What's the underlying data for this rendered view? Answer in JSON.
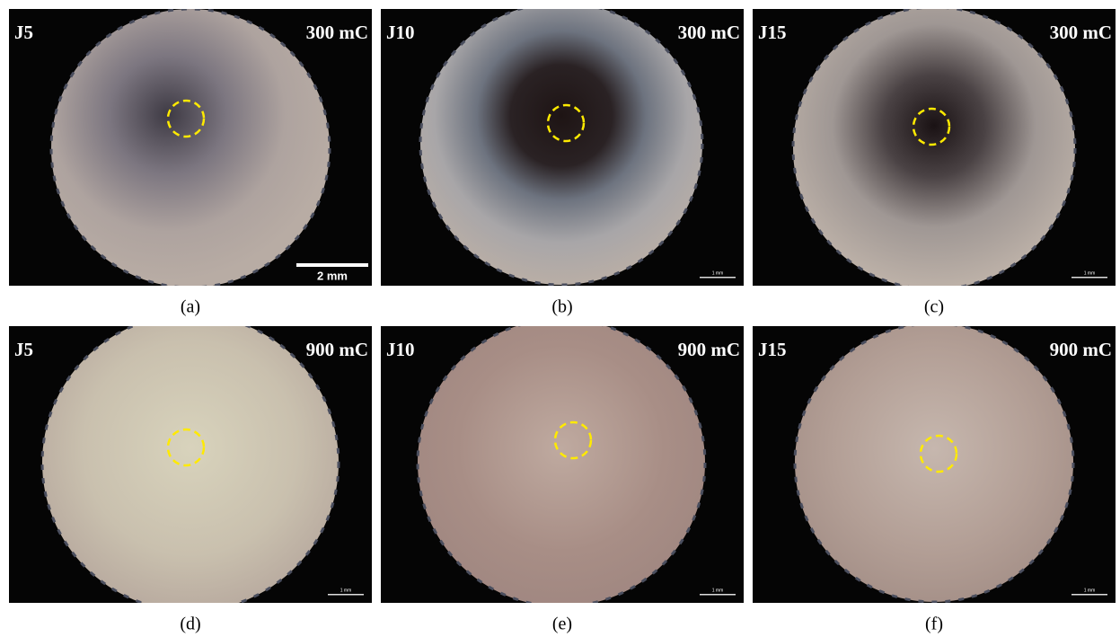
{
  "panels": [
    {
      "sample": "J5",
      "charge": "300 mC",
      "scale": "2 mm",
      "caption": "(a)"
    },
    {
      "sample": "J10",
      "charge": "300 mC",
      "scale": "1 mm",
      "caption": "(b)"
    },
    {
      "sample": "J15",
      "charge": "300 mC",
      "scale": "1 mm",
      "caption": "(c)"
    },
    {
      "sample": "J5",
      "charge": "900 mC",
      "scale": "1 mm",
      "caption": "(d)"
    },
    {
      "sample": "J10",
      "charge": "900 mC",
      "scale": "1 mm",
      "caption": "(e)"
    },
    {
      "sample": "J15",
      "charge": "900 mC",
      "scale": "1 mm",
      "caption": "(f)"
    }
  ]
}
